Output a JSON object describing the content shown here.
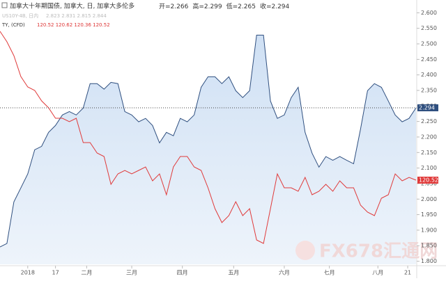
{
  "chart_data": {
    "type": "line",
    "title": "加拿大十年期国债, 加拿大, 日, 加拿大多伦多",
    "ohlc": [
      "开=2.266",
      "高=2.299",
      "低=2.265",
      "收=2.294"
    ],
    "compare_label": "US10Y-4B, 日内",
    "compare_values": "2.823  2.831  2.815  2.844",
    "second_label": "TY, (CFD)",
    "second_values": "120.52  120.62  120.36  120.52",
    "watermark": "FX678汇通网",
    "x": [
      0,
      1,
      2,
      3,
      4,
      5,
      6,
      7,
      8,
      9,
      10,
      11,
      12,
      13,
      14,
      15,
      16,
      17,
      18,
      19,
      20,
      21,
      22,
      23,
      24,
      25,
      26,
      27,
      28,
      29,
      30,
      31,
      32,
      33,
      34,
      35,
      36,
      37,
      38,
      39,
      40,
      41,
      42,
      43,
      44,
      45,
      46,
      47,
      48,
      49,
      50,
      51,
      52,
      53,
      54,
      55,
      56,
      57,
      58,
      59,
      60
    ],
    "xlim": [
      0,
      60
    ],
    "xticks": [
      {
        "value": 4,
        "label": "2018"
      },
      {
        "value": 8,
        "label": "17"
      },
      {
        "value": 12.5,
        "label": "二月"
      },
      {
        "value": 19,
        "label": "三月"
      },
      {
        "value": 26.3,
        "label": "四月"
      },
      {
        "value": 33.7,
        "label": "五月"
      },
      {
        "value": 41,
        "label": "六月"
      },
      {
        "value": 47.5,
        "label": "七月"
      },
      {
        "value": 54.5,
        "label": "八月"
      },
      {
        "value": 58.8,
        "label": "21"
      }
    ],
    "ylim": [
      1.79,
      2.63
    ],
    "yticks": [
      {
        "value": 1.8,
        "label": "1.800"
      },
      {
        "value": 1.85,
        "label": "1.850"
      },
      {
        "value": 1.9,
        "label": "1.900"
      },
      {
        "value": 1.95,
        "label": "1.950"
      },
      {
        "value": 2.0,
        "label": "2.000"
      },
      {
        "value": 2.05,
        "label": "2.050"
      },
      {
        "value": 2.1,
        "label": "2.100"
      },
      {
        "value": 2.15,
        "label": "2.150"
      },
      {
        "value": 2.2,
        "label": "2.200"
      },
      {
        "value": 2.25,
        "label": "2.250"
      },
      {
        "value": 2.3,
        "label": "2.300"
      },
      {
        "value": 2.35,
        "label": "2.350"
      },
      {
        "value": 2.4,
        "label": "2.400"
      },
      {
        "value": 2.45,
        "label": "2.450"
      },
      {
        "value": 2.5,
        "label": "2.500"
      },
      {
        "value": 2.55,
        "label": "2.550"
      },
      {
        "value": 2.6,
        "label": "2.600"
      }
    ],
    "y2lim": [
      118.1,
      125.6
    ],
    "grid": false,
    "series": [
      {
        "name": "加拿大十年期国债",
        "color": "#2f4f7f",
        "fill": "#dde9f7",
        "values": [
          1.846,
          1.857,
          1.991,
          2.036,
          2.081,
          2.159,
          2.17,
          2.215,
          2.237,
          2.271,
          2.282,
          2.271,
          2.293,
          2.372,
          2.372,
          2.354,
          2.376,
          2.372,
          2.282,
          2.271,
          2.249,
          2.26,
          2.237,
          2.181,
          2.215,
          2.204,
          2.26,
          2.249,
          2.271,
          2.36,
          2.394,
          2.394,
          2.372,
          2.394,
          2.349,
          2.327,
          2.349,
          2.528,
          2.528,
          2.316,
          2.26,
          2.271,
          2.327,
          2.36,
          2.215,
          2.148,
          2.103,
          2.137,
          2.125,
          2.137,
          2.125,
          2.114,
          2.226,
          2.349,
          2.372,
          2.36,
          2.316,
          2.271,
          2.249,
          2.26,
          2.294
        ]
      },
      {
        "name": "TY, (CFD)",
        "color": "#e03a3a",
        "axis": "y2",
        "values": [
          124.8,
          124.5,
          124.1,
          123.5,
          123.2,
          123.1,
          122.8,
          122.6,
          122.3,
          122.3,
          122.2,
          122.3,
          121.6,
          121.6,
          121.3,
          121.2,
          120.4,
          120.7,
          120.8,
          120.7,
          120.8,
          120.9,
          120.5,
          120.7,
          120.1,
          120.9,
          121.2,
          121.2,
          120.9,
          120.8,
          120.3,
          119.7,
          119.3,
          119.5,
          119.9,
          119.5,
          119.7,
          118.8,
          118.7,
          119.7,
          120.7,
          120.3,
          120.3,
          120.2,
          120.6,
          120.1,
          120.2,
          120.4,
          120.2,
          120.5,
          120.3,
          120.3,
          119.8,
          119.6,
          119.5,
          120.0,
          120.1,
          120.7,
          120.5,
          120.6,
          120.52
        ]
      }
    ]
  }
}
